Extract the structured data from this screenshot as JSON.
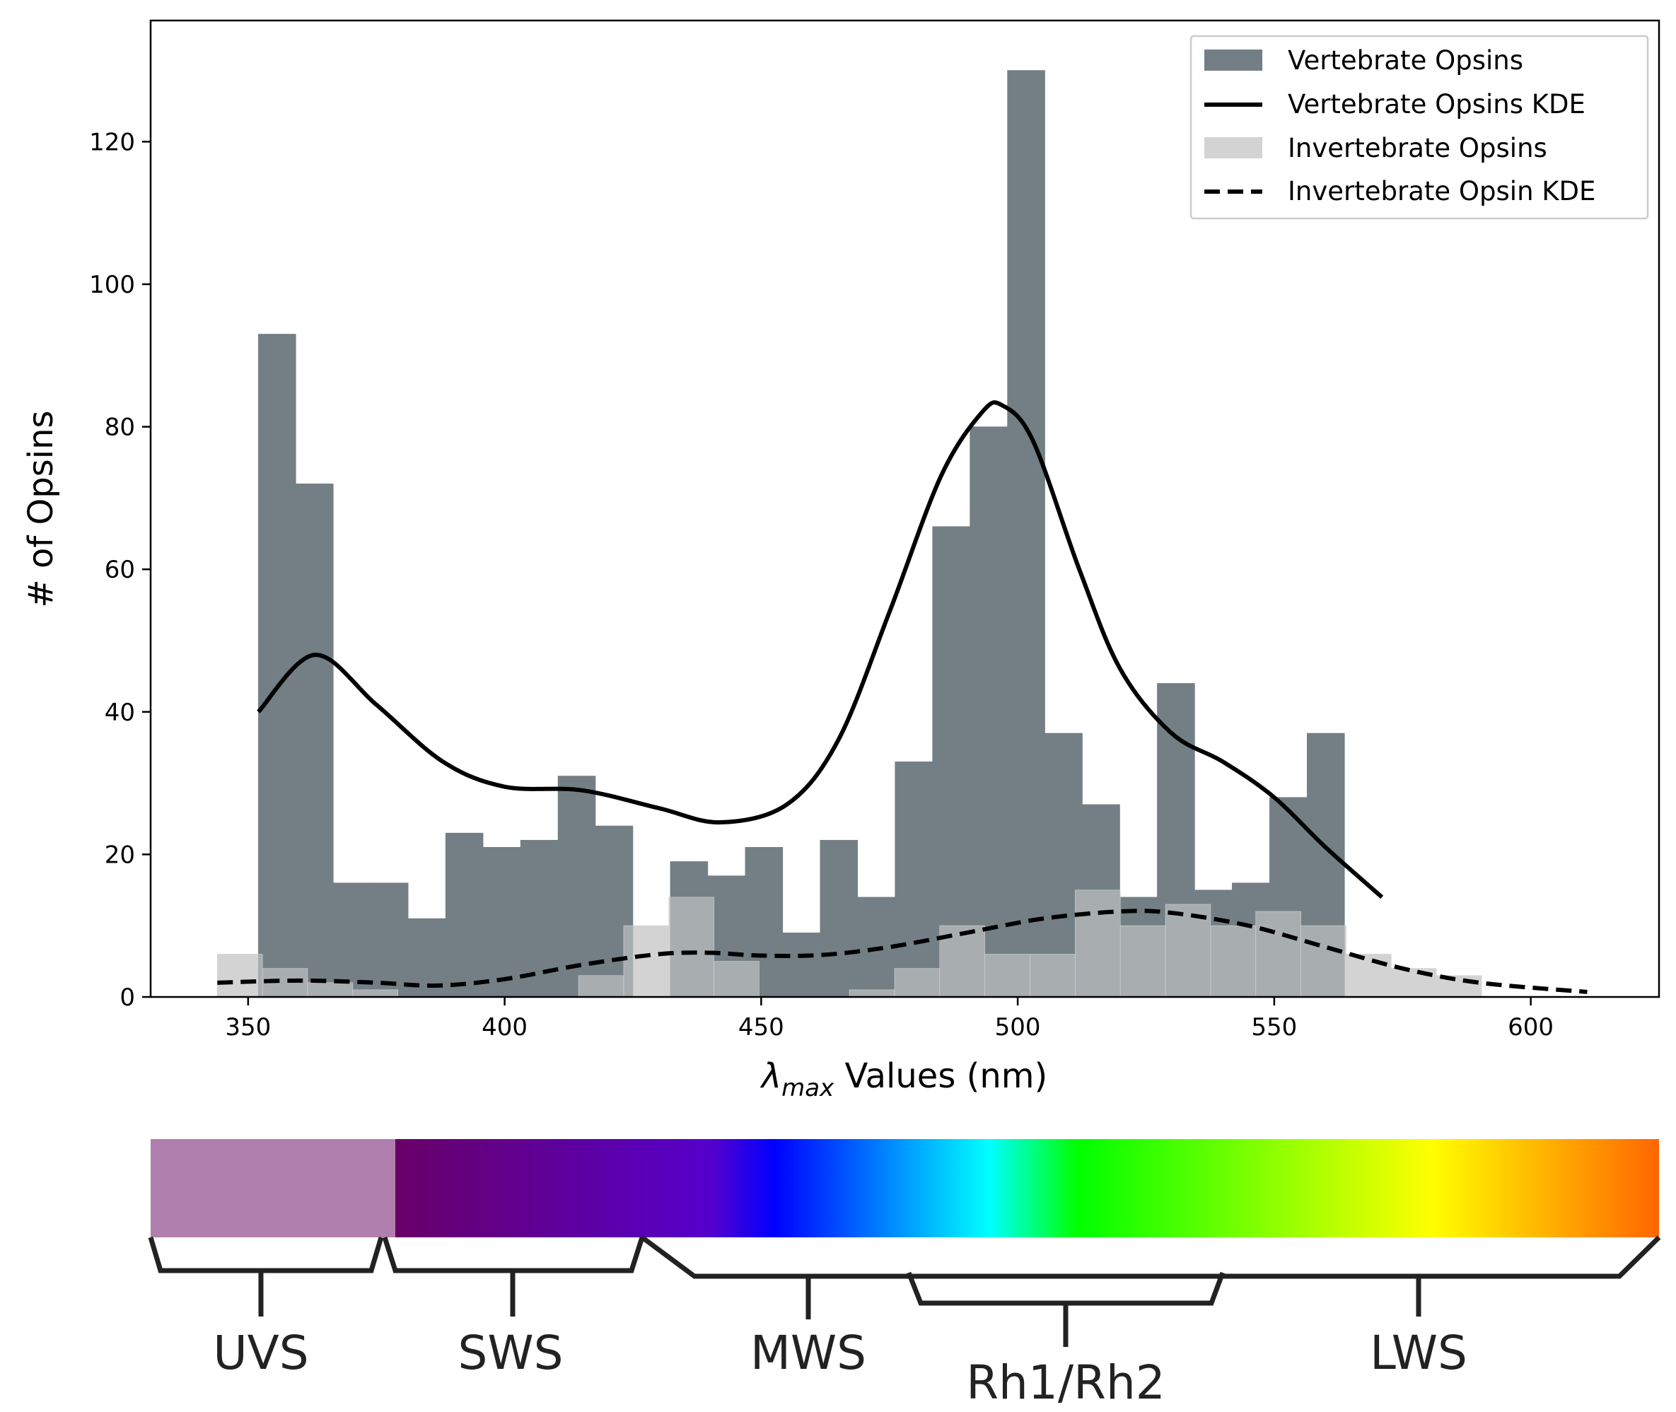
{
  "chart_data": {
    "type": "bar",
    "title": "",
    "xlabel_symbol": "λ",
    "xlabel_subscript": "max",
    "xlabel_rest": " Values (nm)",
    "ylabel": "# of Opsins",
    "xlim": [
      331,
      625
    ],
    "ylim": [
      0,
      137
    ],
    "xticks": [
      350,
      400,
      450,
      500,
      550,
      600
    ],
    "yticks": [
      0,
      20,
      40,
      60,
      80,
      100,
      120
    ],
    "legend_position": "top-right",
    "colors": {
      "vertebrate": "#737f85",
      "invertebrate": "#d3d3d3",
      "axis": "#000000",
      "bracket": "#222222"
    },
    "series": [
      {
        "name": "Vertebrate Opsins",
        "kind": "histogram",
        "bin_start": 352.0,
        "bin_width": 7.3,
        "values": [
          93,
          72,
          16,
          16,
          11,
          23,
          21,
          22,
          31,
          24,
          0,
          19,
          17,
          21,
          9,
          22,
          14,
          33,
          66,
          80,
          130,
          37,
          27,
          14,
          44,
          15,
          16,
          28,
          37
        ]
      },
      {
        "name": "Invertebrate Opsins",
        "kind": "histogram",
        "bin_start": 344.0,
        "bin_width": 8.8,
        "values": [
          6,
          4,
          2,
          1,
          0,
          0,
          0,
          0,
          3,
          10,
          14,
          5,
          0,
          0,
          1,
          4,
          10,
          6,
          6,
          15,
          10,
          13,
          10,
          12,
          10,
          6,
          4,
          3
        ]
      },
      {
        "name": "Vertebrate Opsins KDE",
        "kind": "line",
        "style": "solid",
        "x": [
          352,
          363,
          375,
          388,
          400,
          415,
          430,
          442,
          455,
          465,
          475,
          485,
          493,
          497,
          503,
          512,
          520,
          530,
          540,
          550,
          560,
          571
        ],
        "y": [
          40,
          48,
          41,
          33,
          29.5,
          29,
          26.5,
          24.5,
          27,
          36,
          54,
          73,
          82,
          83,
          78,
          60,
          46,
          37,
          33,
          28,
          21,
          14
        ]
      },
      {
        "name": "Invertebrate Opsin KDE",
        "kind": "line",
        "style": "dashed",
        "x": [
          344,
          360,
          375,
          387,
          400,
          415,
          430,
          440,
          450,
          462,
          475,
          490,
          505,
          520,
          530,
          545,
          560,
          575,
          590,
          611
        ],
        "y": [
          2,
          2.3,
          2,
          1.6,
          2.5,
          4.5,
          6,
          6.2,
          5.8,
          5.9,
          7,
          9,
          11,
          12,
          11.8,
          10,
          7,
          4,
          2,
          0.7
        ]
      }
    ],
    "spectrum_bar": {
      "uv_color": "#b07fae",
      "gradient_stops": [
        {
          "pos": 0.0,
          "color": "#680068"
        },
        {
          "pos": 0.25,
          "color": "#5500cc"
        },
        {
          "pos": 0.3,
          "color": "#0000ff"
        },
        {
          "pos": 0.47,
          "color": "#00ffff"
        },
        {
          "pos": 0.54,
          "color": "#00ff00"
        },
        {
          "pos": 0.82,
          "color": "#ffff00"
        },
        {
          "pos": 1.0,
          "color": "#ff6600"
        }
      ]
    },
    "opsin_classes": [
      "UVS",
      "SWS",
      "MWS",
      "Rh1/Rh2",
      "LWS"
    ]
  }
}
